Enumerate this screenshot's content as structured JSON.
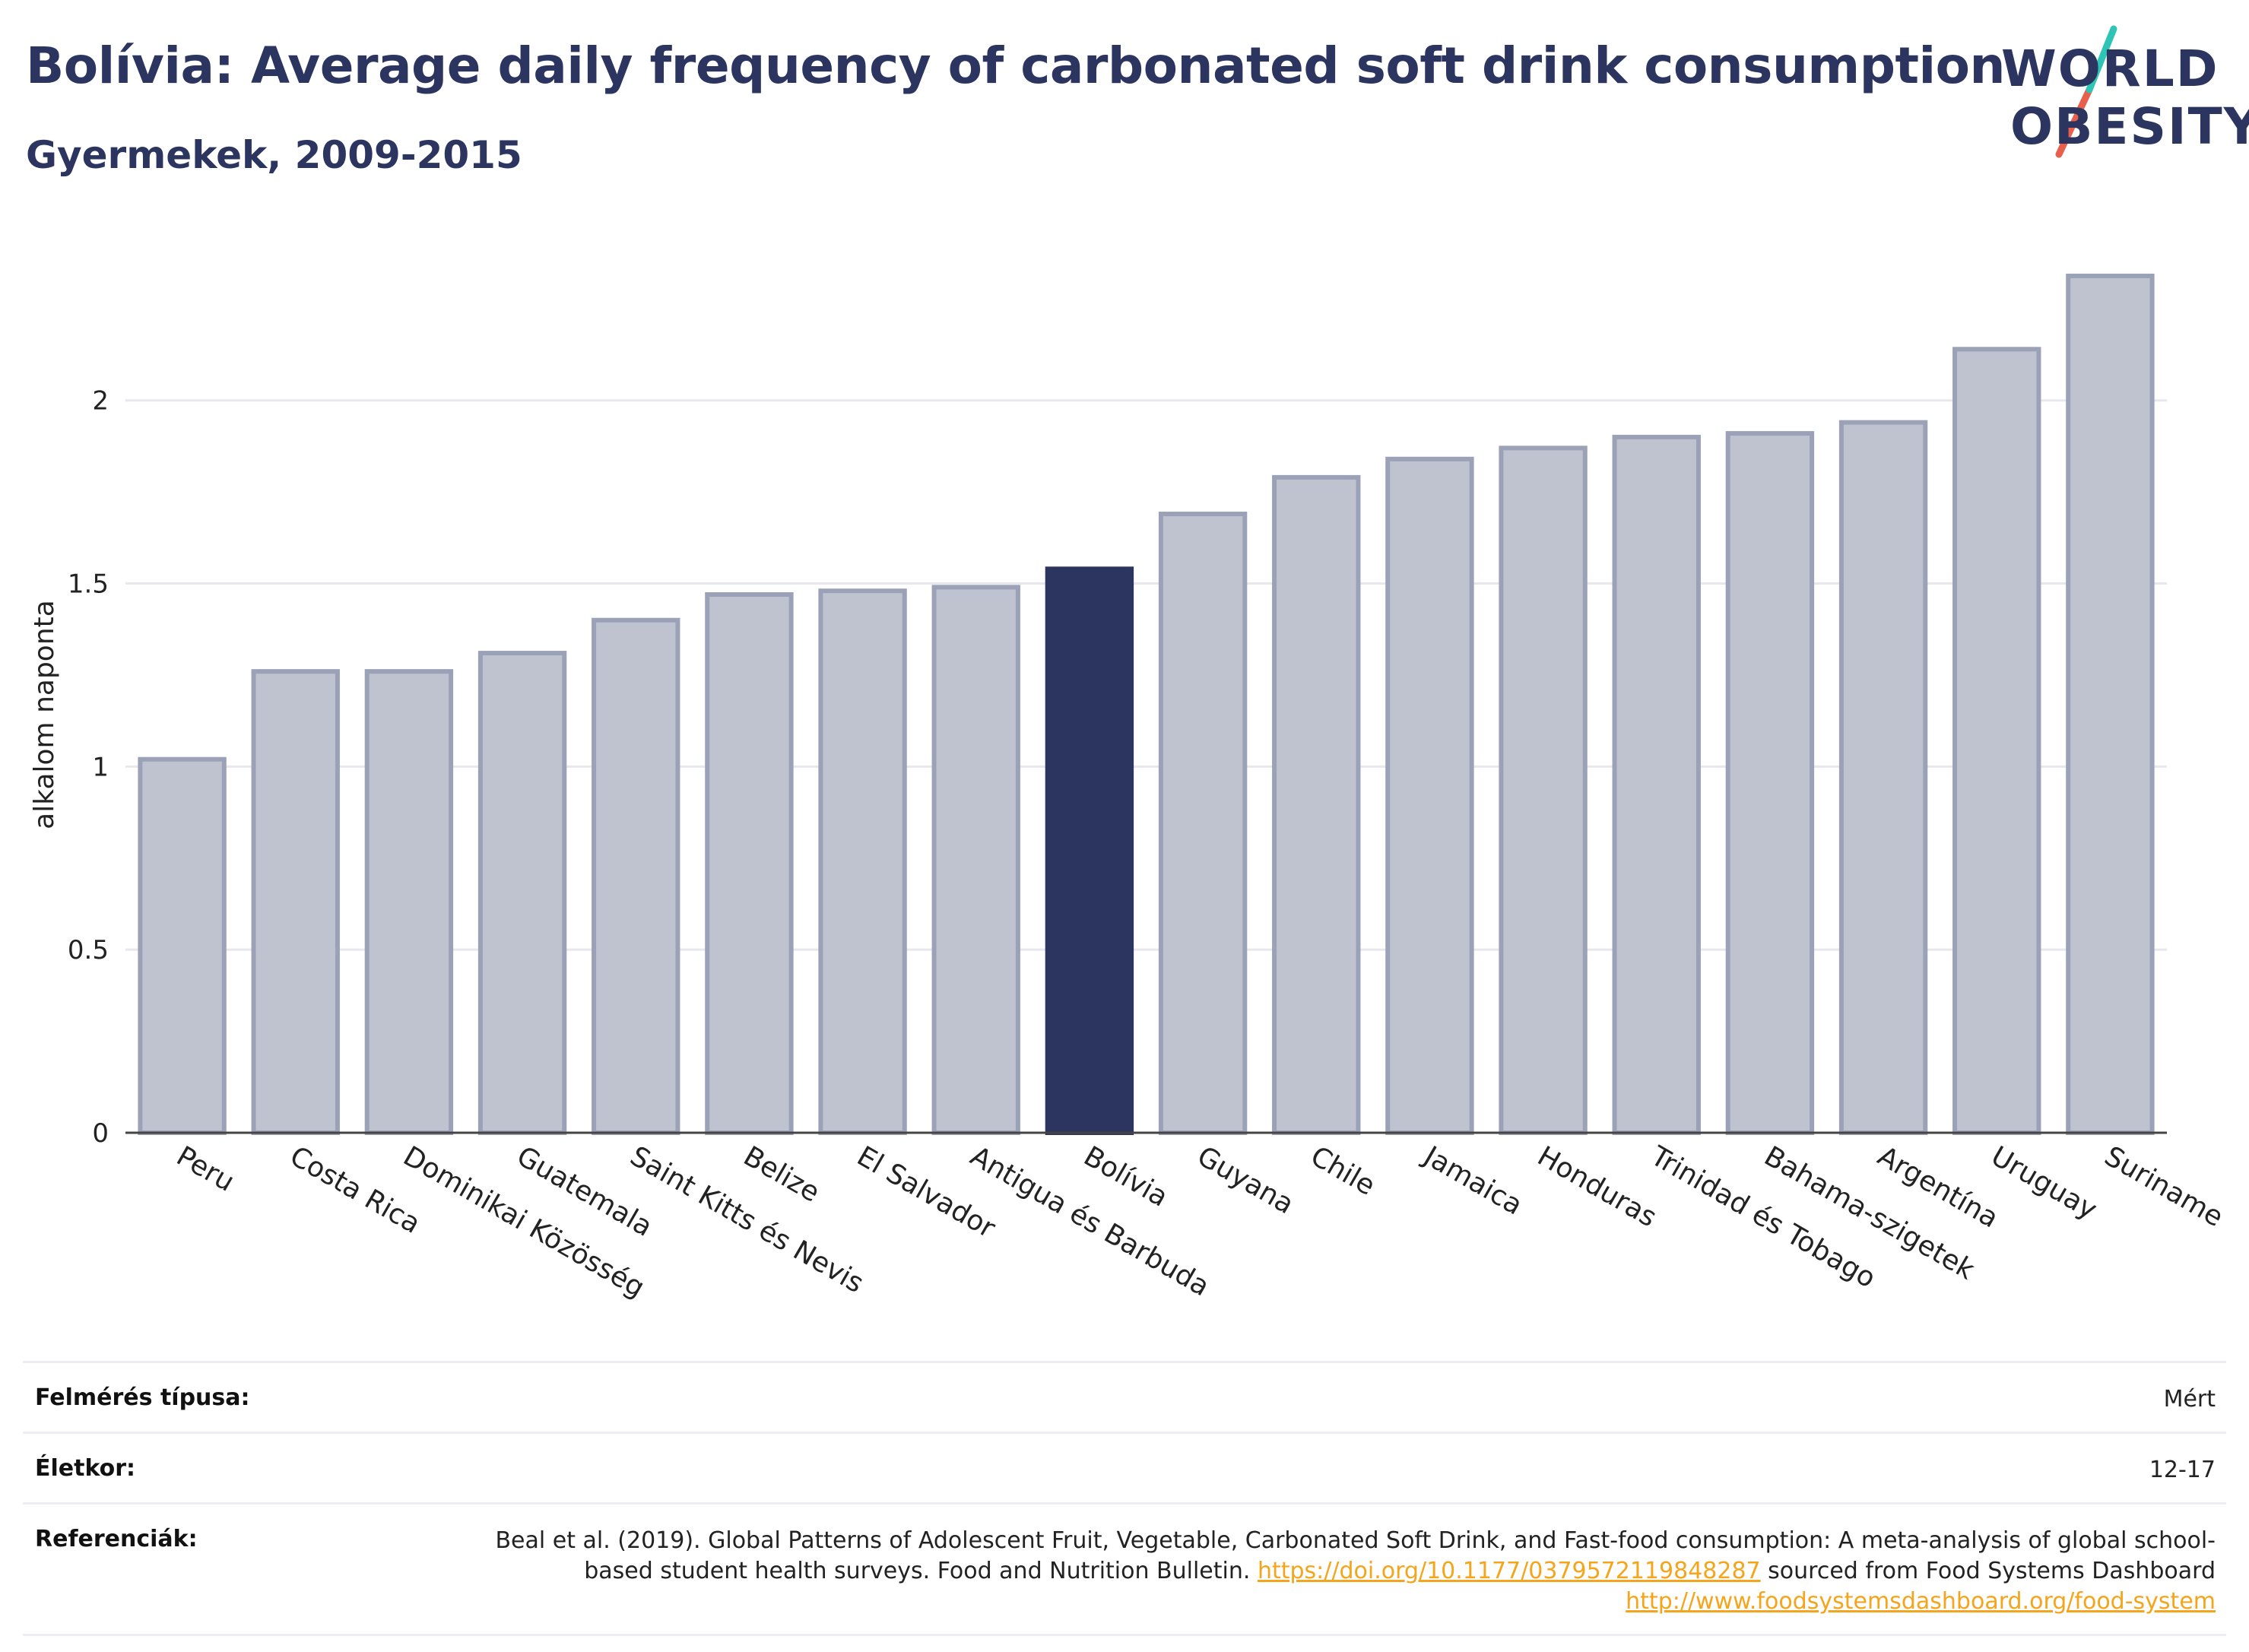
{
  "header": {
    "title": "Bolívia: Average daily frequency of carbonated soft drink consumption",
    "subtitle": "Gyermekek, 2009-2015",
    "logo_line1": "WORLD",
    "logo_line2": "OBESITY"
  },
  "colors": {
    "title": "#2b3560",
    "bar_default": "#bfc3d0",
    "bar_default_stroke": "#9ba1b7",
    "bar_highlight": "#2b3560",
    "link": "#f4a51c",
    "logo_slash_teal": "#2ec4b6",
    "logo_slash_red": "#e8604c"
  },
  "chart_data": {
    "type": "bar",
    "ylabel": "alkalom naponta",
    "xlabel": "",
    "ylim": [
      0,
      2.45
    ],
    "yticks": [
      0,
      0.5,
      1,
      1.5,
      2
    ],
    "ytick_labels": [
      "0",
      "0.5",
      "1",
      "1.5",
      "2"
    ],
    "grid": true,
    "highlight": "Bolívia",
    "categories": [
      "Peru",
      "Costa Rica",
      "Dominikai Közösség",
      "Guatemala",
      "Saint Kitts és Nevis",
      "Belize",
      "El Salvador",
      "Antigua és Barbuda",
      "Bolívia",
      "Guyana",
      "Chile",
      "Jamaica",
      "Honduras",
      "Trinidad és Tobago",
      "Bahama-szigetek",
      "Argentína",
      "Uruguay",
      "Suriname"
    ],
    "values": [
      1.02,
      1.26,
      1.26,
      1.31,
      1.4,
      1.47,
      1.48,
      1.49,
      1.54,
      1.69,
      1.79,
      1.84,
      1.87,
      1.9,
      1.91,
      1.94,
      2.14,
      2.34
    ]
  },
  "info": {
    "survey_label": "Felmérés típusa:",
    "survey_value": "Mért",
    "age_label": "Életkor:",
    "age_value": "12-17",
    "ref_label": "Referenciák:",
    "ref_text1": "Beal et al. (2019). Global Patterns of Adolescent Fruit, Vegetable, Carbonated Soft Drink, and Fast-food consumption: A meta-analysis of global school-based student health surveys. Food and Nutrition Bulletin.",
    "ref_link1": "https://doi.org/10.1177/0379572119848287",
    "ref_text2": "sourced from Food Systems Dashboard",
    "ref_link2": "http://www.foodsystemsdashboard.org/food-system"
  }
}
